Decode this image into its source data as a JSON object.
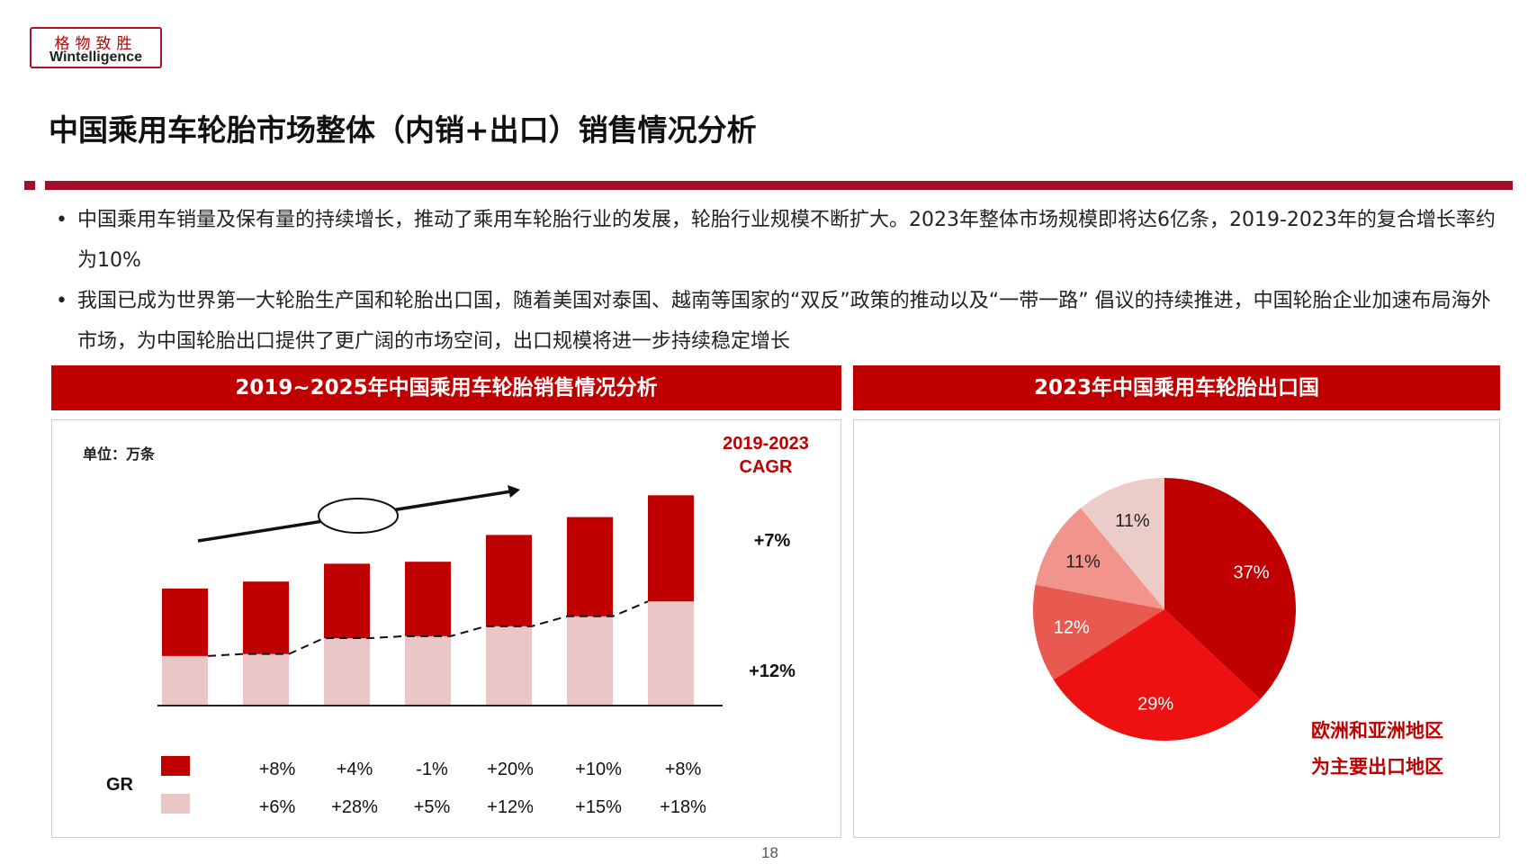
{
  "logo": {
    "cn": "格物致胜",
    "en": "Wintelligence"
  },
  "title": "中国乘用车轮胎市场整体（内销+出口）销售情况分析",
  "bullets": [
    "中国乘用车销量及保有量的持续增长，推动了乘用车轮胎行业的发展，轮胎行业规模不断扩大。2023年整体市场规模即将达6亿条，2019-2023年的复合增长率约为10%",
    "我国已成为世界第一大轮胎生产国和轮胎出口国，随着美国对泰国、越南等国家的“双反”政策的推动以及“一带一路” 倡议的持续推进，中国轮胎企业加速布局海外市场，为中国轮胎出口提供了更广阔的市场空间，出口规模将进一步持续稳定增长"
  ],
  "bullet_symbol": "•",
  "left_panel": {
    "header": "2019~2025年中国乘用车轮胎销售情况分析",
    "unit": "单位：万条",
    "cagr_title_line1": "2019-2023",
    "cagr_title_line2": "CAGR",
    "cagr_top": "+7%",
    "cagr_bottom": "+12%",
    "gr_label": "GR",
    "gr_top": [
      "+8%",
      "+4%",
      "-1%",
      "+20%",
      "+10%",
      "+8%"
    ],
    "gr_bottom": [
      "+6%",
      "+28%",
      "+5%",
      "+12%",
      "+15%",
      "+18%"
    ]
  },
  "right_panel": {
    "header": "2023年中国乘用车轮胎出口国",
    "note_line1": "欧洲和亚洲地区",
    "note_line2": "为主要出口地区"
  },
  "page_number": "18",
  "colors": {
    "brand": "#a0102a",
    "red": "#c00000",
    "pink": "#e8c7c6",
    "pie": [
      "#c00000",
      "#ee1111",
      "#e85a50",
      "#f0948c",
      "#ecccc8"
    ]
  },
  "chart_data": [
    {
      "type": "bar",
      "stacked": true,
      "categories": [
        "",
        "",
        "",
        "",
        "",
        "",
        ""
      ],
      "series": [
        {
          "values": [
            50,
            52,
            68,
            70,
            80,
            90,
            105
          ]
        },
        {
          "values": [
            68,
            73,
            75,
            75,
            92,
            100,
            107
          ]
        }
      ],
      "trend_line": "dashed line along top of lower series",
      "ylim": [
        0,
        215
      ]
    },
    {
      "type": "pie",
      "labels": [
        "37%",
        "29%",
        "12%",
        "11%",
        "11%"
      ],
      "values": [
        37,
        29,
        12,
        11,
        11
      ]
    }
  ]
}
